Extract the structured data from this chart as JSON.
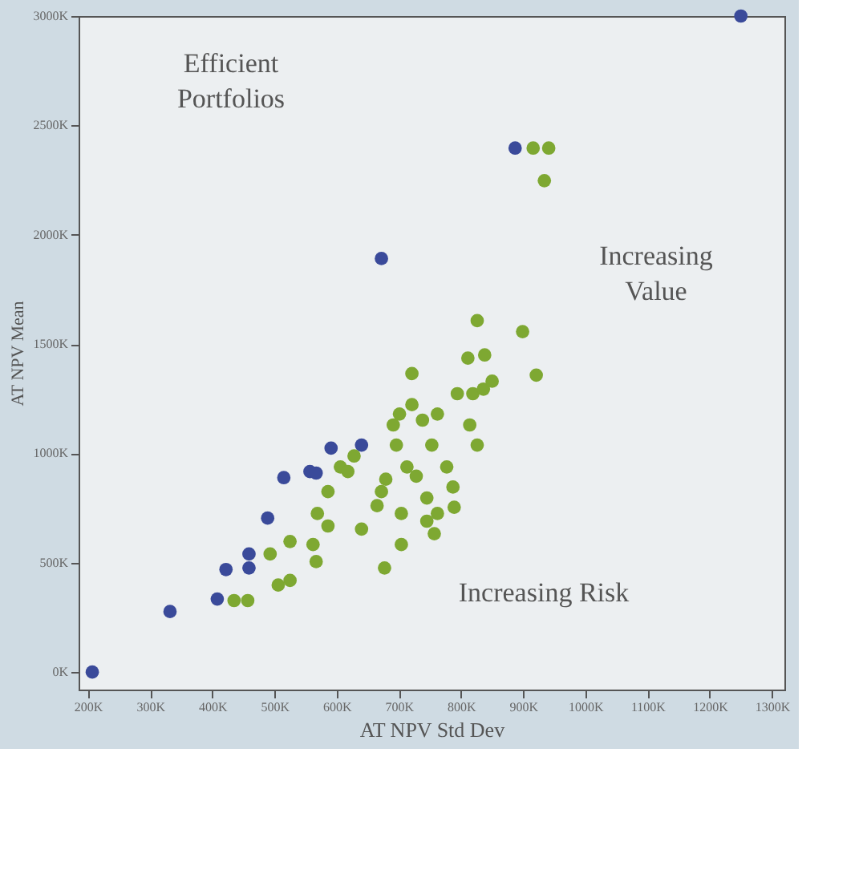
{
  "chart_data": {
    "type": "scatter",
    "xlabel": "AT NPV Std Dev",
    "ylabel": "AT NPV Mean",
    "xlim": [
      185,
      1320
    ],
    "ylim": [
      -80,
      3000
    ],
    "xticks": [
      {
        "value": 200,
        "label": "200K"
      },
      {
        "value": 300,
        "label": "300K"
      },
      {
        "value": 400,
        "label": "400K"
      },
      {
        "value": 500,
        "label": "500K"
      },
      {
        "value": 600,
        "label": "600K"
      },
      {
        "value": 700,
        "label": "700K"
      },
      {
        "value": 800,
        "label": "800K"
      },
      {
        "value": 900,
        "label": "900K"
      },
      {
        "value": 1000,
        "label": "1000K"
      },
      {
        "value": 1100,
        "label": "1100K"
      },
      {
        "value": 1200,
        "label": "1200K"
      },
      {
        "value": 1300,
        "label": "1300K"
      }
    ],
    "yticks": [
      {
        "value": 0,
        "label": "0K"
      },
      {
        "value": 500,
        "label": "500K"
      },
      {
        "value": 1000,
        "label": "1000K"
      },
      {
        "value": 1500,
        "label": "1500K"
      },
      {
        "value": 2000,
        "label": "2000K"
      },
      {
        "value": 2500,
        "label": "2500K"
      },
      {
        "value": 3000,
        "label": "3000K"
      }
    ],
    "grid": false,
    "marker": "circle",
    "series": [
      {
        "color": "#3a4a9a",
        "x": [
          207,
          332,
          408,
          422,
          459,
          459,
          489,
          515,
          557,
          567,
          591,
          640,
          672,
          887,
          1250
        ],
        "values": [
          0,
          277,
          334,
          469,
          540,
          476,
          704,
          889,
          917,
          910,
          1024,
          1038,
          1891,
          2396,
          3000
        ]
      },
      {
        "color": "#7ea832",
        "x": [
          435,
          457,
          493,
          525,
          562,
          567,
          506,
          525,
          569,
          586,
          586,
          606,
          628,
          618,
          640,
          665,
          672,
          679,
          691,
          696,
          701,
          721,
          721,
          738,
          762,
          753,
          713,
          728,
          745,
          762,
          704,
          704,
          677,
          787,
          789,
          777,
          794,
          814,
          826,
          819,
          836,
          811,
          838,
          826,
          850,
          921,
          899,
          934,
          916,
          941,
          745,
          757
        ],
        "values": [
          327,
          327,
          540,
          597,
          583,
          505,
          398,
          419,
          725,
          668,
          825,
          938,
          988,
          917,
          654,
          761,
          825,
          882,
          1130,
          1038,
          1180,
          1365,
          1223,
          1152,
          1180,
          1038,
          938,
          896,
          796,
          725,
          725,
          583,
          476,
          846,
          754,
          938,
          1273,
          1130,
          1038,
          1273,
          1294,
          1436,
          1450,
          1607,
          1330,
          1358,
          1557,
          2247,
          2396,
          2396,
          690,
          633
        ]
      }
    ],
    "annotations": [
      "Efficient Portfolios",
      "Increasing Value",
      "Increasing Risk"
    ]
  }
}
